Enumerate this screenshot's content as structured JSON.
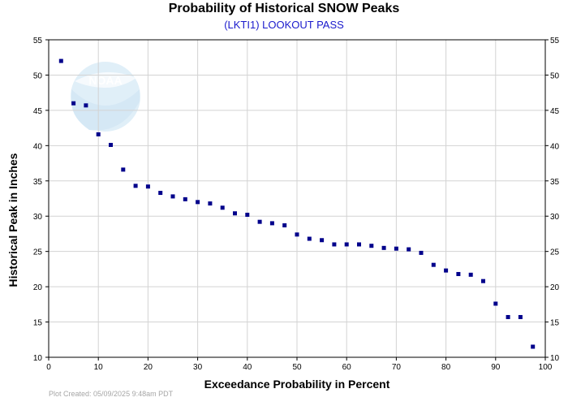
{
  "header": {
    "title": "Probability of Historical SNOW Peaks",
    "subtitle": "(LKTI1) LOOKOUT PASS"
  },
  "footer": {
    "plot_created": "Plot Created: 05/09/2025 9:48am PDT"
  },
  "watermark": {
    "logo_text": "NOAA"
  },
  "colors": {
    "marker": "#00008b",
    "grid": "#d3d3d3",
    "axis": "#000000",
    "subtitle": "#1a1acc"
  },
  "chart_data": {
    "type": "scatter",
    "xlabel": "Exceedance Probability in Percent",
    "ylabel": "Historical Peak in Inches",
    "xlim": [
      0,
      100
    ],
    "ylim": [
      10,
      55
    ],
    "xticks": [
      0,
      10,
      20,
      30,
      40,
      50,
      60,
      70,
      80,
      90,
      100
    ],
    "yticks": [
      10,
      15,
      20,
      25,
      30,
      35,
      40,
      45,
      50,
      55
    ],
    "grid": true,
    "right_axis_mirrored": true,
    "points": [
      {
        "x": 2.5,
        "y": 52.0
      },
      {
        "x": 5.0,
        "y": 46.0
      },
      {
        "x": 7.5,
        "y": 45.7
      },
      {
        "x": 10.0,
        "y": 41.6
      },
      {
        "x": 12.5,
        "y": 40.1
      },
      {
        "x": 15.0,
        "y": 36.6
      },
      {
        "x": 17.5,
        "y": 34.3
      },
      {
        "x": 20.0,
        "y": 34.2
      },
      {
        "x": 22.5,
        "y": 33.3
      },
      {
        "x": 25.0,
        "y": 32.8
      },
      {
        "x": 27.5,
        "y": 32.4
      },
      {
        "x": 30.0,
        "y": 32.0
      },
      {
        "x": 32.5,
        "y": 31.8
      },
      {
        "x": 35.0,
        "y": 31.2
      },
      {
        "x": 37.5,
        "y": 30.4
      },
      {
        "x": 40.0,
        "y": 30.2
      },
      {
        "x": 42.5,
        "y": 29.2
      },
      {
        "x": 45.0,
        "y": 29.0
      },
      {
        "x": 47.5,
        "y": 28.7
      },
      {
        "x": 50.0,
        "y": 27.4
      },
      {
        "x": 52.5,
        "y": 26.8
      },
      {
        "x": 55.0,
        "y": 26.6
      },
      {
        "x": 57.5,
        "y": 26.0
      },
      {
        "x": 60.0,
        "y": 26.0
      },
      {
        "x": 62.5,
        "y": 26.0
      },
      {
        "x": 65.0,
        "y": 25.8
      },
      {
        "x": 67.5,
        "y": 25.5
      },
      {
        "x": 70.0,
        "y": 25.4
      },
      {
        "x": 72.5,
        "y": 25.3
      },
      {
        "x": 75.0,
        "y": 24.8
      },
      {
        "x": 77.5,
        "y": 23.1
      },
      {
        "x": 80.0,
        "y": 22.3
      },
      {
        "x": 82.5,
        "y": 21.8
      },
      {
        "x": 85.0,
        "y": 21.7
      },
      {
        "x": 87.5,
        "y": 20.8
      },
      {
        "x": 90.0,
        "y": 17.6
      },
      {
        "x": 92.5,
        "y": 15.7
      },
      {
        "x": 95.0,
        "y": 15.7
      },
      {
        "x": 97.5,
        "y": 11.5
      }
    ]
  }
}
